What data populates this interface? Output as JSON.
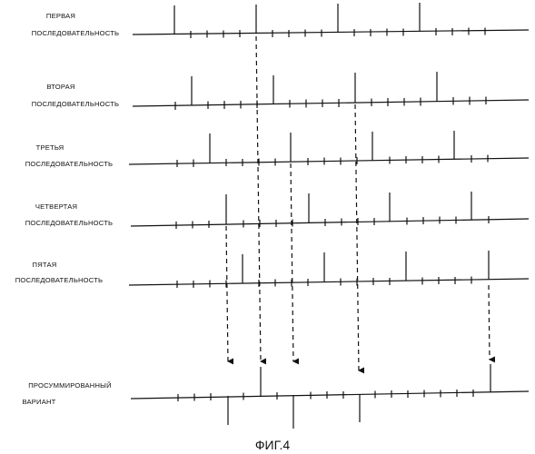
{
  "figure": {
    "caption": "ФИГ.4",
    "rows": [
      {
        "id": "seq1",
        "label": [
          "ПЕРВАЯ",
          "ПОСЛЕДОВАТЕЛЬНОСТЬ"
        ]
      },
      {
        "id": "seq2",
        "label": [
          "ВТОРАЯ",
          "ПОСЛЕДОВАТЕЛЬНОСТЬ"
        ]
      },
      {
        "id": "seq3",
        "label": [
          "ТРЕТЬЯ",
          "ПОСЛЕДОВАТЕЛЬНОСТЬ"
        ]
      },
      {
        "id": "seq4",
        "label": [
          "ЧЕТВЕРТАЯ",
          "ПОСЛЕДОВАТЕЛЬНОСТЬ"
        ]
      },
      {
        "id": "seq5",
        "label": [
          "ПЯТАЯ",
          "ПОСЛЕДОВАТЕЛЬНОСТЬ"
        ]
      },
      {
        "id": "sum",
        "label": [
          "ПРОСУММИРОВАННЫЙ",
          "ВАРИАНТ"
        ]
      }
    ],
    "colors": {
      "ink": "#111111",
      "background": "#ffffff"
    }
  }
}
